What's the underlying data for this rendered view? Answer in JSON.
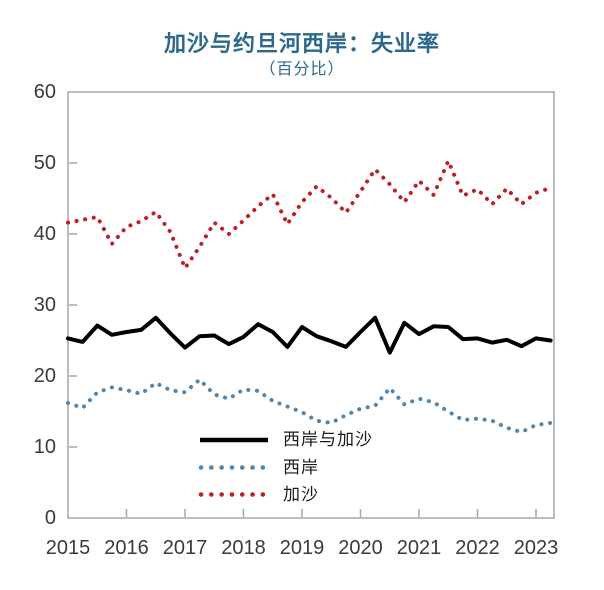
{
  "title": "加沙与约旦河西岸：失业率",
  "subtitle": "（百分比）",
  "colors": {
    "title_text": "#2C688C",
    "axis": "#A6A6A6",
    "tick_labels": "#3a3a3a",
    "series_total": "#000000",
    "series_west_bank": "#5385AD",
    "series_gaza": "#BE1E24"
  },
  "chart_data": {
    "type": "line",
    "title": "加沙与约旦河西岸：失业率",
    "subtitle": "（百分比）",
    "x_start_year": 2015,
    "points_per_year": 4,
    "x_tick_labels": [
      "2015",
      "2016",
      "2017",
      "2018",
      "2019",
      "2020",
      "2021",
      "2022",
      "2023"
    ],
    "ylim": [
      0,
      60
    ],
    "y_ticks": [
      0,
      10,
      20,
      30,
      40,
      50,
      60
    ],
    "grid": false,
    "legend_position": "inside-bottom-center",
    "series": [
      {
        "name": "西岸与加沙",
        "style": "solid",
        "color": "#000000",
        "values": [
          25.3,
          24.8,
          27.1,
          25.8,
          26.2,
          26.5,
          28.2,
          26.0,
          24.0,
          25.6,
          25.7,
          24.5,
          25.5,
          27.3,
          26.2,
          24.1,
          26.9,
          25.6,
          24.9,
          24.1,
          26.2,
          28.2,
          23.3,
          27.5,
          25.9,
          27.0,
          26.9,
          25.2,
          25.3,
          24.7,
          25.1,
          24.2,
          25.3,
          25.0
        ]
      },
      {
        "name": "西岸",
        "style": "dotted",
        "color": "#5385AD",
        "values": [
          16.2,
          15.5,
          17.7,
          18.4,
          18.0,
          17.5,
          19.0,
          18.0,
          17.7,
          19.5,
          17.4,
          16.8,
          18.1,
          17.9,
          16.5,
          15.7,
          14.9,
          13.7,
          13.4,
          14.5,
          15.4,
          15.8,
          18.3,
          16.0,
          16.8,
          16.3,
          15.0,
          13.8,
          14.0,
          13.7,
          12.7,
          12.1,
          13.1,
          13.4
        ]
      },
      {
        "name": "加沙",
        "style": "dotted",
        "color": "#BE1E24",
        "values": [
          41.6,
          42.0,
          42.4,
          38.6,
          41.0,
          41.8,
          43.1,
          40.3,
          35.2,
          38.2,
          41.6,
          40.0,
          41.9,
          43.9,
          45.6,
          41.4,
          44.5,
          46.7,
          45.1,
          43.0,
          46.0,
          49.1,
          47.0,
          44.5,
          47.5,
          45.5,
          50.3,
          45.4,
          46.3,
          44.2,
          46.4,
          44.2,
          45.8,
          46.5
        ]
      }
    ]
  }
}
